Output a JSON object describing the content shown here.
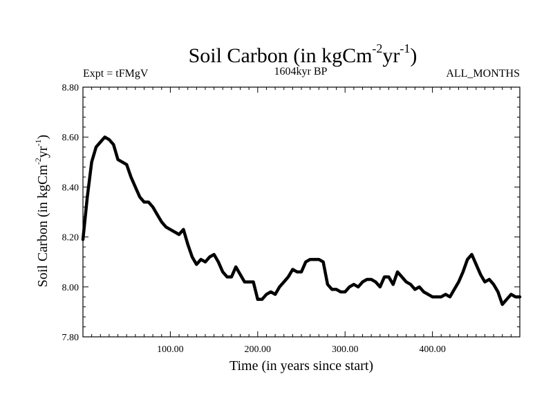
{
  "chart_data": {
    "type": "line",
    "title": "Soil Carbon (in kgCm-2yr-1)",
    "title_parts": {
      "base": "Soil Carbon (in kgCm",
      "sup1": "-2",
      "mid": "yr",
      "sup2": "-1",
      "end": ")"
    },
    "subtitle_left": "Expt = tFMgV",
    "subtitle_center": "1604kyr BP",
    "subtitle_right": "ALL_MONTHS",
    "xlabel": "Time (in years since start)",
    "ylabel": "Soil Carbon (in kgCm-2yr-1)",
    "ylabel_parts": {
      "base": "Soil Carbon (in kgCm",
      "sup1": "-2",
      "mid": "yr",
      "sup2": "-1",
      "end": ")"
    },
    "xlim": [
      0,
      500
    ],
    "ylim": [
      7.8,
      8.8
    ],
    "xticks": [
      100,
      200,
      300,
      400
    ],
    "xtick_labels": [
      "100.00",
      "200.00",
      "300.00",
      "400.00"
    ],
    "yticks": [
      7.8,
      8.0,
      8.2,
      8.4,
      8.6,
      8.8
    ],
    "ytick_labels": [
      "7.80",
      "8.00",
      "8.20",
      "8.40",
      "8.60",
      "8.80"
    ],
    "series": [
      {
        "name": "Soil Carbon",
        "x": [
          0,
          5,
          10,
          15,
          20,
          25,
          30,
          35,
          40,
          45,
          50,
          55,
          60,
          65,
          70,
          75,
          80,
          85,
          90,
          95,
          100,
          105,
          110,
          115,
          120,
          125,
          130,
          135,
          140,
          145,
          150,
          155,
          160,
          165,
          170,
          175,
          180,
          185,
          190,
          195,
          200,
          205,
          210,
          215,
          220,
          225,
          230,
          235,
          240,
          245,
          250,
          255,
          260,
          265,
          270,
          275,
          280,
          285,
          290,
          295,
          300,
          305,
          310,
          315,
          320,
          325,
          330,
          335,
          340,
          345,
          350,
          355,
          360,
          365,
          370,
          375,
          380,
          385,
          390,
          395,
          400,
          405,
          410,
          415,
          420,
          425,
          430,
          435,
          440,
          445,
          450,
          455,
          460,
          465,
          470,
          475,
          480,
          485,
          490,
          495,
          500
        ],
        "values": [
          8.19,
          8.36,
          8.5,
          8.56,
          8.58,
          8.6,
          8.59,
          8.57,
          8.51,
          8.5,
          8.49,
          8.44,
          8.4,
          8.36,
          8.34,
          8.34,
          8.32,
          8.29,
          8.26,
          8.24,
          8.23,
          8.22,
          8.21,
          8.23,
          8.17,
          8.12,
          8.09,
          8.11,
          8.1,
          8.12,
          8.13,
          8.1,
          8.06,
          8.04,
          8.04,
          8.08,
          8.05,
          8.02,
          8.02,
          8.02,
          7.95,
          7.95,
          7.97,
          7.98,
          7.97,
          8.0,
          8.02,
          8.04,
          8.07,
          8.06,
          8.06,
          8.1,
          8.11,
          8.11,
          8.11,
          8.1,
          8.01,
          7.99,
          7.99,
          7.98,
          7.98,
          8.0,
          8.01,
          8.0,
          8.02,
          8.03,
          8.03,
          8.02,
          8.0,
          8.04,
          8.04,
          8.01,
          8.06,
          8.04,
          8.02,
          8.01,
          7.99,
          8.0,
          7.98,
          7.97,
          7.96,
          7.96,
          7.96,
          7.97,
          7.96,
          7.99,
          8.02,
          8.06,
          8.11,
          8.13,
          8.09,
          8.05,
          8.02,
          8.03,
          8.01,
          7.98,
          7.93,
          7.95,
          7.97,
          7.96,
          7.96
        ]
      }
    ],
    "line_color": "#000000",
    "grid": false
  }
}
